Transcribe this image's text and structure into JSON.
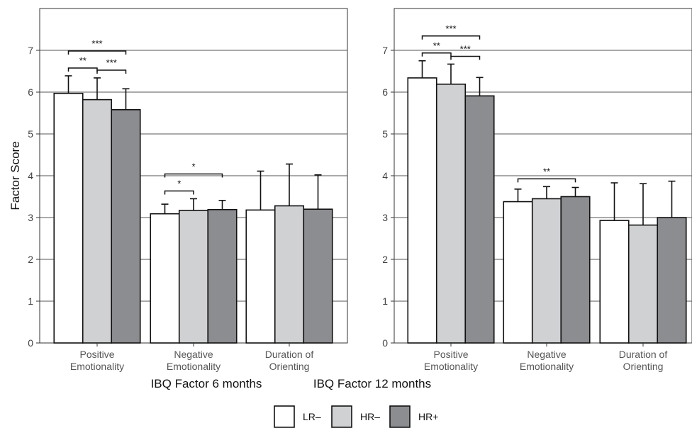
{
  "chart_data": [
    {
      "type": "bar",
      "xlabel": "IBQ Factor 6 months",
      "ylabel": "Factor Score",
      "ylim": [
        0,
        8
      ],
      "yticks": [
        "0",
        "1",
        "2",
        "3",
        "4",
        "5",
        "6",
        "7"
      ],
      "grid": true,
      "categories": [
        [
          "Positive",
          "Emotionality"
        ],
        [
          "Negative",
          "Emotionality"
        ],
        [
          "Duration of",
          "Orienting"
        ]
      ],
      "series": [
        {
          "name": "LR–",
          "values": [
            5.97,
            3.09,
            3.18
          ],
          "error": [
            0.42,
            0.23,
            0.93
          ]
        },
        {
          "name": "HR–",
          "values": [
            5.82,
            3.17,
            3.28
          ],
          "error": [
            0.52,
            0.28,
            1.0
          ]
        },
        {
          "name": "HR+",
          "values": [
            5.58,
            3.19,
            3.2
          ],
          "error": [
            0.5,
            0.22,
            0.82
          ]
        }
      ],
      "significance": [
        {
          "category": 0,
          "from": 0,
          "to": 1,
          "label": "**"
        },
        {
          "category": 0,
          "from": 1,
          "to": 2,
          "label": "***"
        },
        {
          "category": 0,
          "from": 0,
          "to": 2,
          "label": "***"
        },
        {
          "category": 1,
          "from": 0,
          "to": 1,
          "label": "*"
        },
        {
          "category": 1,
          "from": 0,
          "to": 2,
          "label": "*"
        }
      ]
    },
    {
      "type": "bar",
      "xlabel": "IBQ Factor 12 months",
      "ylabel": "",
      "ylim": [
        0,
        8
      ],
      "yticks": [
        "0",
        "1",
        "2",
        "3",
        "4",
        "5",
        "6",
        "7"
      ],
      "grid": true,
      "categories": [
        [
          "Positive",
          "Emotionality"
        ],
        [
          "Negative",
          "Emotionality"
        ],
        [
          "Duration of",
          "Orienting"
        ]
      ],
      "series": [
        {
          "name": "LR–",
          "values": [
            6.34,
            3.38,
            2.93
          ],
          "error": [
            0.41,
            0.3,
            0.9
          ]
        },
        {
          "name": "HR–",
          "values": [
            6.19,
            3.45,
            2.82
          ],
          "error": [
            0.48,
            0.29,
            0.99
          ]
        },
        {
          "name": "HR+",
          "values": [
            5.91,
            3.5,
            3.0
          ],
          "error": [
            0.44,
            0.22,
            0.87
          ]
        }
      ],
      "significance": [
        {
          "category": 0,
          "from": 0,
          "to": 1,
          "label": "**"
        },
        {
          "category": 0,
          "from": 1,
          "to": 2,
          "label": "***"
        },
        {
          "category": 0,
          "from": 0,
          "to": 2,
          "label": "***"
        },
        {
          "category": 1,
          "from": 0,
          "to": 2,
          "label": "**"
        }
      ]
    }
  ],
  "legend": {
    "position": "bottom-center",
    "items": [
      {
        "label": "LR–",
        "color": "#ffffff"
      },
      {
        "label": "HR–",
        "color": "#d0d1d3"
      },
      {
        "label": "HR+",
        "color": "#8c8d91"
      }
    ]
  },
  "colors": {
    "LR–": "#ffffff",
    "HR–": "#d0d1d3",
    "HR+": "#8c8d91",
    "grid": "#555555",
    "axis": "#333333"
  }
}
